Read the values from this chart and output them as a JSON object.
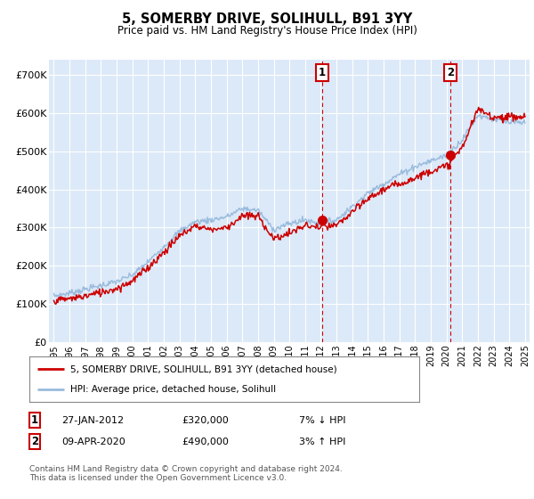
{
  "title": "5, SOMERBY DRIVE, SOLIHULL, B91 3YY",
  "subtitle": "Price paid vs. HM Land Registry's House Price Index (HPI)",
  "ylabel_ticks": [
    "£0",
    "£100K",
    "£200K",
    "£300K",
    "£400K",
    "£500K",
    "£600K",
    "£700K"
  ],
  "ytick_vals": [
    0,
    100000,
    200000,
    300000,
    400000,
    500000,
    600000,
    700000
  ],
  "ylim": [
    0,
    740000
  ],
  "xlim_start": 1994.7,
  "xlim_end": 2025.3,
  "background_color": "#ffffff",
  "plot_bg_color": "#dce9f8",
  "grid_color": "#ffffff",
  "red_line_color": "#cc0000",
  "blue_line_color": "#99bbdd",
  "marker1_date": 2012.07,
  "marker1_price": 320000,
  "marker2_date": 2020.27,
  "marker2_price": 490000,
  "legend_red_label": "5, SOMERBY DRIVE, SOLIHULL, B91 3YY (detached house)",
  "legend_blue_label": "HPI: Average price, detached house, Solihull",
  "annotation1_num": "1",
  "annotation1_date": "27-JAN-2012",
  "annotation1_price": "£320,000",
  "annotation1_hpi": "7% ↓ HPI",
  "annotation2_num": "2",
  "annotation2_date": "09-APR-2020",
  "annotation2_price": "£490,000",
  "annotation2_hpi": "3% ↑ HPI",
  "footnote": "Contains HM Land Registry data © Crown copyright and database right 2024.\nThis data is licensed under the Open Government Licence v3.0.",
  "xtick_years": [
    1995,
    1996,
    1997,
    1998,
    1999,
    2000,
    2001,
    2002,
    2003,
    2004,
    2005,
    2006,
    2007,
    2008,
    2009,
    2010,
    2011,
    2012,
    2013,
    2014,
    2015,
    2016,
    2017,
    2018,
    2019,
    2020,
    2021,
    2022,
    2023,
    2024,
    2025
  ]
}
